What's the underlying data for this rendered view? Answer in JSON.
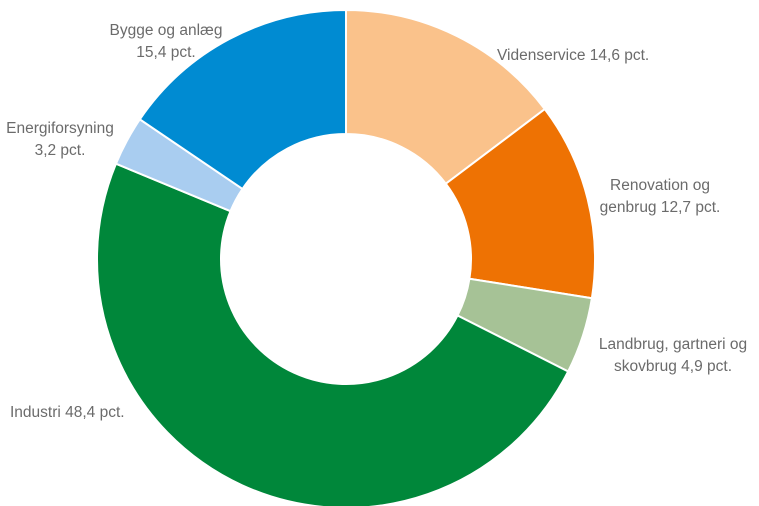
{
  "chart_data": {
    "type": "pie",
    "donut": true,
    "title": "",
    "slices": [
      {
        "name": "Videnservice",
        "value": 14.6,
        "color": "#fac28b",
        "label": [
          "Videnservice 14,6 pct."
        ]
      },
      {
        "name": "Renovation og genbrug",
        "value": 12.7,
        "color": "#ee7203",
        "label": [
          "Renovation og",
          "genbrug 12,7 pct."
        ]
      },
      {
        "name": "Landbrug, gartneri og skovbrug",
        "value": 4.9,
        "color": "#a6c296",
        "label": [
          "Landbrug, gartneri og",
          "skovbrug 4,9 pct."
        ]
      },
      {
        "name": "Industri",
        "value": 48.4,
        "color": "#00873a",
        "label": [
          "Industri 48,4 pct."
        ]
      },
      {
        "name": "Energiforsyning",
        "value": 3.2,
        "color": "#a9cdf0",
        "label": [
          "Energiforsyning",
          "3,2 pct."
        ]
      },
      {
        "name": "Bygge og anlæg",
        "value": 15.4,
        "color": "#008bd2",
        "label": [
          "Bygge og anlæg",
          "15,4 pct."
        ]
      }
    ]
  }
}
